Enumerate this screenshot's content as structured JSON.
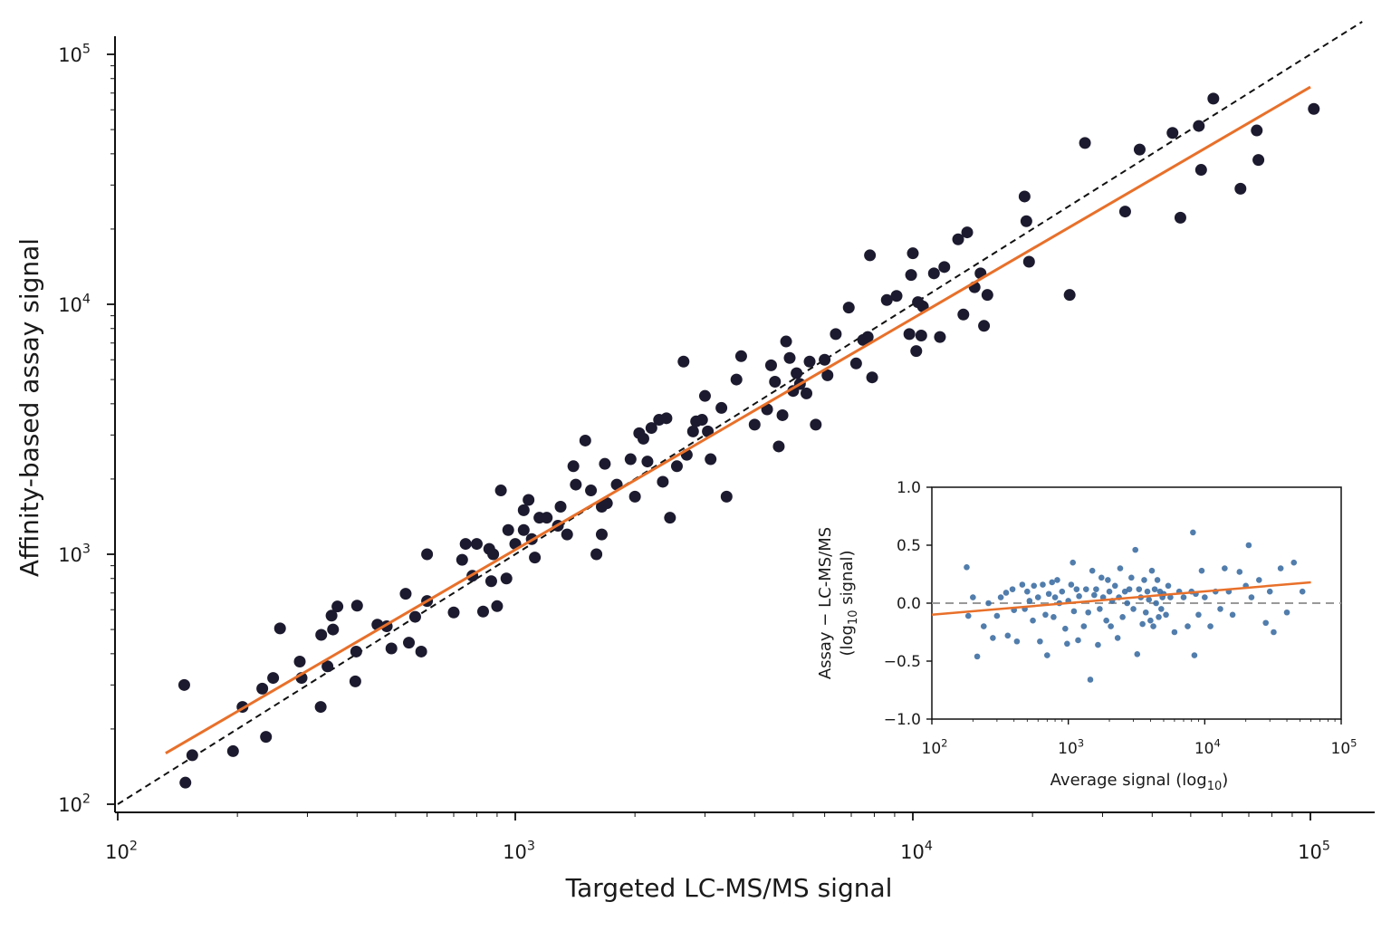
{
  "chart_data": [
    {
      "type": "scatter",
      "xlabel": "Targeted LC-MS/MS signal",
      "ylabel": "Affinity-based assay signal",
      "xscale": "log",
      "yscale": "log",
      "xlim": [
        100,
        140000
      ],
      "ylim": [
        95,
        120000
      ],
      "x_ticks": [
        {
          "value": 100,
          "base": "10",
          "exp": "2"
        },
        {
          "value": 1000,
          "base": "10",
          "exp": "3"
        },
        {
          "value": 10000,
          "base": "10",
          "exp": "4"
        },
        {
          "value": 100000,
          "base": "10",
          "exp": "5"
        }
      ],
      "y_ticks": [
        {
          "value": 100,
          "base": "10",
          "exp": "2"
        },
        {
          "value": 1000,
          "base": "10",
          "exp": "3"
        },
        {
          "value": 10000,
          "base": "10",
          "exp": "4"
        },
        {
          "value": 100000,
          "base": "10",
          "exp": "5"
        }
      ],
      "grid": false,
      "point_color": "#1c1a2e",
      "fit_color": "#e8702a",
      "identity_color": "#111111",
      "points": [
        [
          148,
          122
        ],
        [
          147,
          300
        ],
        [
          154,
          157
        ],
        [
          195,
          163
        ],
        [
          206,
          245
        ],
        [
          231,
          290
        ],
        [
          236,
          186
        ],
        [
          246,
          320
        ],
        [
          256,
          505
        ],
        [
          287,
          372
        ],
        [
          290,
          320
        ],
        [
          324,
          245
        ],
        [
          325,
          476
        ],
        [
          337,
          356
        ],
        [
          345,
          568
        ],
        [
          348,
          500
        ],
        [
          357,
          618
        ],
        [
          396,
          310
        ],
        [
          398,
          408
        ],
        [
          400,
          623
        ],
        [
          450,
          523
        ],
        [
          475,
          515
        ],
        [
          488,
          420
        ],
        [
          530,
          695
        ],
        [
          540,
          443
        ],
        [
          560,
          562
        ],
        [
          580,
          408
        ],
        [
          600,
          650
        ],
        [
          600,
          1000
        ],
        [
          700,
          585
        ],
        [
          735,
          950
        ],
        [
          750,
          1100
        ],
        [
          780,
          820
        ],
        [
          800,
          1100
        ],
        [
          830,
          590
        ],
        [
          860,
          1050
        ],
        [
          870,
          780
        ],
        [
          880,
          1000
        ],
        [
          900,
          620
        ],
        [
          920,
          1800
        ],
        [
          950,
          800
        ],
        [
          960,
          1250
        ],
        [
          1000,
          1100
        ],
        [
          1050,
          1500
        ],
        [
          1050,
          1250
        ],
        [
          1080,
          1650
        ],
        [
          1100,
          1150
        ],
        [
          1120,
          970
        ],
        [
          1150,
          1400
        ],
        [
          1200,
          1400
        ],
        [
          1280,
          1300
        ],
        [
          1300,
          1550
        ],
        [
          1350,
          1200
        ],
        [
          1400,
          2250
        ],
        [
          1420,
          1900
        ],
        [
          1500,
          2850
        ],
        [
          1550,
          1800
        ],
        [
          1600,
          1000
        ],
        [
          1650,
          1550
        ],
        [
          1650,
          1200
        ],
        [
          1680,
          2300
        ],
        [
          1700,
          1600
        ],
        [
          1800,
          1900
        ],
        [
          1950,
          2400
        ],
        [
          2000,
          1700
        ],
        [
          2050,
          3050
        ],
        [
          2100,
          2900
        ],
        [
          2150,
          2350
        ],
        [
          2200,
          3200
        ],
        [
          2300,
          3450
        ],
        [
          2350,
          1950
        ],
        [
          2400,
          3500
        ],
        [
          2450,
          1400
        ],
        [
          2550,
          2250
        ],
        [
          2650,
          5900
        ],
        [
          2700,
          2500
        ],
        [
          2800,
          3100
        ],
        [
          2850,
          3400
        ],
        [
          2950,
          3450
        ],
        [
          3000,
          4300
        ],
        [
          3050,
          3100
        ],
        [
          3100,
          2400
        ],
        [
          3300,
          3850
        ],
        [
          3400,
          1700
        ],
        [
          3700,
          6200
        ],
        [
          3600,
          5000
        ],
        [
          4000,
          3300
        ],
        [
          4300,
          3800
        ],
        [
          4400,
          5700
        ],
        [
          4500,
          4900
        ],
        [
          4600,
          2700
        ],
        [
          4800,
          7100
        ],
        [
          4700,
          3600
        ],
        [
          4900,
          6100
        ],
        [
          5000,
          4500
        ],
        [
          5100,
          5300
        ],
        [
          5200,
          4800
        ],
        [
          5400,
          4400
        ],
        [
          5500,
          5900
        ],
        [
          5700,
          3300
        ],
        [
          6000,
          6000
        ],
        [
          6100,
          5200
        ],
        [
          6400,
          7600
        ],
        [
          6900,
          9700
        ],
        [
          7200,
          5800
        ],
        [
          7500,
          7200
        ],
        [
          7700,
          7400
        ],
        [
          7800,
          15700
        ],
        [
          7900,
          5100
        ],
        [
          8600,
          10400
        ],
        [
          9100,
          10800
        ],
        [
          9800,
          7600
        ],
        [
          9900,
          13100
        ],
        [
          10000,
          16000
        ],
        [
          10200,
          6500
        ],
        [
          10300,
          10200
        ],
        [
          10500,
          7500
        ],
        [
          10600,
          9800
        ],
        [
          11300,
          13300
        ],
        [
          11700,
          7400
        ],
        [
          12000,
          14100
        ],
        [
          13000,
          18200
        ],
        [
          13400,
          9100
        ],
        [
          13700,
          19400
        ],
        [
          14300,
          11700
        ],
        [
          14800,
          13300
        ],
        [
          15100,
          8200
        ],
        [
          15400,
          10900
        ],
        [
          19100,
          27000
        ],
        [
          19300,
          21500
        ],
        [
          19600,
          14800
        ],
        [
          24800,
          10900
        ],
        [
          27100,
          44200
        ],
        [
          34200,
          23500
        ],
        [
          37200,
          41600
        ],
        [
          45000,
          48500
        ],
        [
          47100,
          22200
        ],
        [
          52400,
          51700
        ],
        [
          53100,
          34500
        ],
        [
          57000,
          66500
        ],
        [
          66700,
          29000
        ],
        [
          73300,
          49600
        ],
        [
          74000,
          37800
        ],
        [
          102000,
          60500
        ]
      ],
      "fit": {
        "x": [
          132,
          100000
        ],
        "y": [
          160,
          74000
        ]
      },
      "identity": {
        "x": [
          100,
          135000
        ],
        "y": [
          100,
          135000
        ]
      }
    },
    {
      "type": "scatter",
      "panel": "inset",
      "xlabel": "Average signal (log",
      "xlabel_sub": "10",
      "xlabel_close": ")",
      "ylabel_line1": "Assay − LC-MS/MS",
      "ylabel_line2_pre": "(log",
      "ylabel_line2_sub": "10",
      "ylabel_line2_post": " signal)",
      "xscale": "log",
      "xlim": [
        100,
        100000
      ],
      "ylim": [
        -1.0,
        1.0
      ],
      "y_ticks": [
        "−1.0",
        "−0.5",
        "0.0",
        "0.5",
        "1.0"
      ],
      "y_tick_values": [
        -1.0,
        -0.5,
        0.0,
        0.5,
        1.0
      ],
      "x_ticks": [
        {
          "value": 100,
          "base": "10",
          "exp": "2"
        },
        {
          "value": 1000,
          "base": "10",
          "exp": "3"
        },
        {
          "value": 10000,
          "base": "10",
          "exp": "4"
        },
        {
          "value": 100000,
          "base": "10",
          "exp": "5"
        }
      ],
      "point_color": "#3e6fa3",
      "fit_color": "#e8702a",
      "zero_line_color": "#999999",
      "fit": {
        "x": [
          100,
          60000
        ],
        "y": [
          -0.1,
          0.18
        ]
      },
      "points": [
        [
          180,
          0.31
        ],
        [
          185,
          -0.11
        ],
        [
          200,
          0.05
        ],
        [
          215,
          -0.46
        ],
        [
          240,
          -0.2
        ],
        [
          260,
          0.0
        ],
        [
          280,
          -0.3
        ],
        [
          300,
          -0.11
        ],
        [
          320,
          0.05
        ],
        [
          350,
          0.09
        ],
        [
          360,
          -0.28
        ],
        [
          390,
          0.12
        ],
        [
          400,
          -0.06
        ],
        [
          420,
          -0.33
        ],
        [
          460,
          0.16
        ],
        [
          480,
          -0.05
        ],
        [
          500,
          0.1
        ],
        [
          520,
          0.02
        ],
        [
          550,
          -0.15
        ],
        [
          560,
          0.15
        ],
        [
          600,
          0.05
        ],
        [
          620,
          -0.33
        ],
        [
          650,
          0.16
        ],
        [
          680,
          -0.1
        ],
        [
          700,
          -0.45
        ],
        [
          720,
          0.08
        ],
        [
          760,
          0.18
        ],
        [
          780,
          -0.12
        ],
        [
          800,
          0.05
        ],
        [
          830,
          0.2
        ],
        [
          860,
          0.0
        ],
        [
          900,
          0.1
        ],
        [
          950,
          -0.22
        ],
        [
          980,
          -0.35
        ],
        [
          1000,
          0.02
        ],
        [
          1050,
          0.16
        ],
        [
          1080,
          0.35
        ],
        [
          1100,
          -0.07
        ],
        [
          1150,
          0.12
        ],
        [
          1180,
          -0.32
        ],
        [
          1200,
          0.06
        ],
        [
          1300,
          -0.2
        ],
        [
          1350,
          0.12
        ],
        [
          1400,
          -0.08
        ],
        [
          1450,
          -0.66
        ],
        [
          1500,
          0.28
        ],
        [
          1550,
          0.07
        ],
        [
          1600,
          0.12
        ],
        [
          1650,
          -0.36
        ],
        [
          1700,
          -0.05
        ],
        [
          1750,
          0.22
        ],
        [
          1800,
          0.05
        ],
        [
          1900,
          -0.15
        ],
        [
          1950,
          0.2
        ],
        [
          2000,
          0.1
        ],
        [
          2050,
          -0.2
        ],
        [
          2100,
          0.02
        ],
        [
          2200,
          0.15
        ],
        [
          2300,
          -0.3
        ],
        [
          2350,
          0.05
        ],
        [
          2400,
          0.3
        ],
        [
          2500,
          -0.12
        ],
        [
          2600,
          0.1
        ],
        [
          2700,
          0.0
        ],
        [
          2800,
          0.12
        ],
        [
          2900,
          0.22
        ],
        [
          3000,
          -0.05
        ],
        [
          3100,
          0.46
        ],
        [
          3200,
          -0.44
        ],
        [
          3300,
          0.12
        ],
        [
          3400,
          0.05
        ],
        [
          3500,
          -0.18
        ],
        [
          3600,
          0.2
        ],
        [
          3700,
          -0.08
        ],
        [
          3800,
          0.1
        ],
        [
          3900,
          0.03
        ],
        [
          4000,
          -0.15
        ],
        [
          4100,
          0.28
        ],
        [
          4200,
          -0.2
        ],
        [
          4300,
          0.12
        ],
        [
          4400,
          0.0
        ],
        [
          4500,
          0.2
        ],
        [
          4600,
          -0.12
        ],
        [
          4700,
          0.1
        ],
        [
          4800,
          -0.05
        ],
        [
          4900,
          0.05
        ],
        [
          5000,
          0.08
        ],
        [
          5200,
          -0.1
        ],
        [
          5400,
          0.15
        ],
        [
          5600,
          0.05
        ],
        [
          6000,
          -0.25
        ],
        [
          6500,
          0.1
        ],
        [
          7000,
          0.05
        ],
        [
          7500,
          -0.2
        ],
        [
          8000,
          0.1
        ],
        [
          8200,
          0.61
        ],
        [
          8400,
          -0.45
        ],
        [
          8600,
          0.08
        ],
        [
          9000,
          -0.1
        ],
        [
          9500,
          0.28
        ],
        [
          10000,
          0.05
        ],
        [
          11000,
          -0.2
        ],
        [
          12000,
          0.1
        ],
        [
          13000,
          -0.05
        ],
        [
          14000,
          0.3
        ],
        [
          15000,
          0.1
        ],
        [
          16000,
          -0.1
        ],
        [
          18000,
          0.27
        ],
        [
          20000,
          0.15
        ],
        [
          21000,
          0.5
        ],
        [
          22000,
          0.05
        ],
        [
          25000,
          0.2
        ],
        [
          28000,
          -0.17
        ],
        [
          30000,
          0.1
        ],
        [
          32000,
          -0.25
        ],
        [
          36000,
          0.3
        ],
        [
          40000,
          -0.08
        ],
        [
          45000,
          0.35
        ],
        [
          52000,
          0.1
        ]
      ]
    }
  ]
}
